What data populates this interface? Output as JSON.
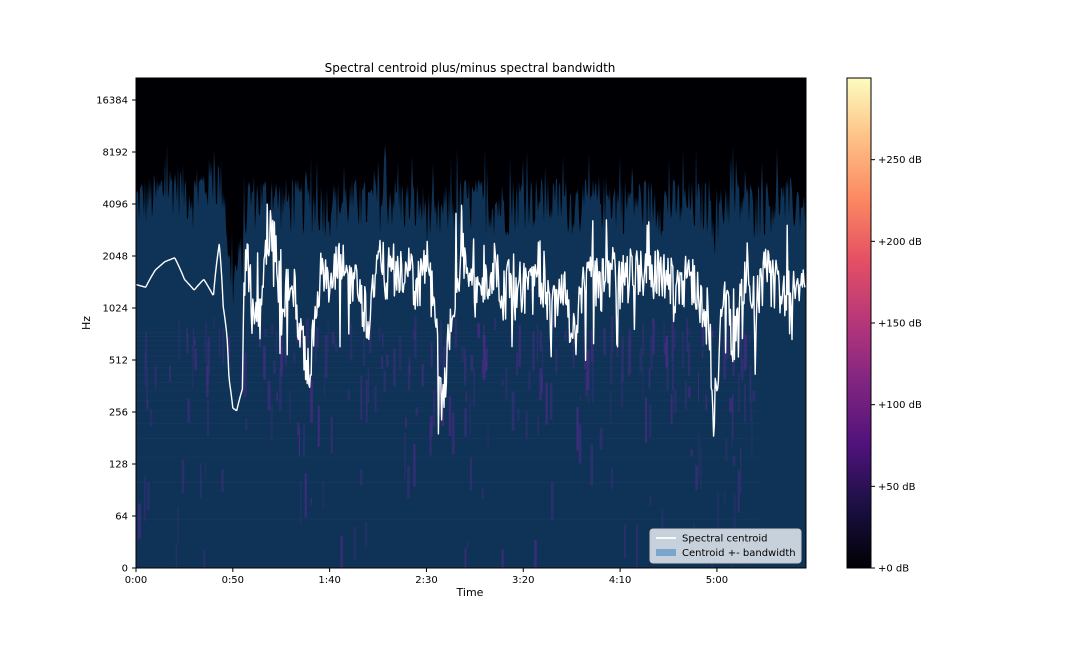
{
  "chart_data": {
    "type": "spectrogram",
    "title": "Spectral centroid plus/minus spectral bandwidth",
    "xlabel": "Time",
    "ylabel": "Hz",
    "x_range_seconds": [
      0,
      346
    ],
    "x_ticks": [
      {
        "t": 0,
        "label": "0:00"
      },
      {
        "t": 50,
        "label": "0:50"
      },
      {
        "t": 100,
        "label": "1:40"
      },
      {
        "t": 150,
        "label": "2:30"
      },
      {
        "t": 200,
        "label": "3:20"
      },
      {
        "t": 250,
        "label": "4:10"
      },
      {
        "t": 300,
        "label": "5:00"
      }
    ],
    "y_scale": "log (base 2, linear near zero)",
    "y_ticks": [
      {
        "hz": 0,
        "label": "0"
      },
      {
        "hz": 64,
        "label": "64"
      },
      {
        "hz": 128,
        "label": "128"
      },
      {
        "hz": 256,
        "label": "256"
      },
      {
        "hz": 512,
        "label": "512"
      },
      {
        "hz": 1024,
        "label": "1024"
      },
      {
        "hz": 2048,
        "label": "2048"
      },
      {
        "hz": 4096,
        "label": "4096"
      },
      {
        "hz": 8192,
        "label": "8192"
      },
      {
        "hz": 16384,
        "label": "16384"
      }
    ],
    "colorbar": {
      "colormap": "magma",
      "range_db": [
        0,
        300
      ],
      "ticks": [
        {
          "db": 0,
          "label": "+0 dB"
        },
        {
          "db": 50,
          "label": "+50 dB"
        },
        {
          "db": 100,
          "label": "+100 dB"
        },
        {
          "db": 150,
          "label": "+150 dB"
        },
        {
          "db": 200,
          "label": "+200 dB"
        },
        {
          "db": 250,
          "label": "+250 dB"
        }
      ]
    },
    "series": [
      {
        "name": "Spectral centroid",
        "color": "#ffffff",
        "points": [
          [
            0,
            1400
          ],
          [
            5,
            1350
          ],
          [
            10,
            1700
          ],
          [
            15,
            1900
          ],
          [
            20,
            2000
          ],
          [
            25,
            1500
          ],
          [
            30,
            1300
          ],
          [
            35,
            1500
          ],
          [
            40,
            1200
          ],
          [
            43,
            2400
          ],
          [
            45,
            1050
          ],
          [
            47,
            700
          ],
          [
            48,
            400
          ],
          [
            50,
            270
          ],
          [
            52,
            260
          ],
          [
            55,
            350
          ],
          [
            57,
            2200
          ],
          [
            60,
            950
          ],
          [
            65,
            1100
          ],
          [
            70,
            2900
          ],
          [
            75,
            950
          ],
          [
            80,
            1500
          ],
          [
            85,
            650
          ],
          [
            90,
            350
          ],
          [
            95,
            1600
          ],
          [
            100,
            1200
          ],
          [
            105,
            1800
          ],
          [
            110,
            1500
          ],
          [
            115,
            1300
          ],
          [
            120,
            800
          ],
          [
            125,
            1800
          ],
          [
            130,
            1600
          ],
          [
            135,
            1400
          ],
          [
            140,
            1700
          ],
          [
            145,
            1300
          ],
          [
            150,
            1800
          ],
          [
            155,
            700
          ],
          [
            158,
            200
          ],
          [
            160,
            400
          ],
          [
            165,
            1400
          ],
          [
            170,
            2100
          ],
          [
            175,
            1100
          ],
          [
            180,
            1300
          ],
          [
            185,
            1700
          ],
          [
            190,
            1200
          ],
          [
            195,
            1500
          ],
          [
            200,
            1300
          ],
          [
            205,
            1500
          ],
          [
            210,
            1400
          ],
          [
            215,
            900
          ],
          [
            220,
            1600
          ],
          [
            225,
            650
          ],
          [
            230,
            1200
          ],
          [
            235,
            1500
          ],
          [
            240,
            1300
          ],
          [
            245,
            1700
          ],
          [
            250,
            1400
          ],
          [
            255,
            1600
          ],
          [
            260,
            1700
          ],
          [
            265,
            1400
          ],
          [
            270,
            1600
          ],
          [
            275,
            1500
          ],
          [
            280,
            1300
          ],
          [
            285,
            1600
          ],
          [
            290,
            1200
          ],
          [
            295,
            1000
          ],
          [
            298,
            230
          ],
          [
            300,
            400
          ],
          [
            305,
            1200
          ],
          [
            308,
            550
          ],
          [
            312,
            1000
          ],
          [
            315,
            1400
          ],
          [
            320,
            1000
          ],
          [
            325,
            1600
          ],
          [
            330,
            1400
          ],
          [
            335,
            1200
          ],
          [
            340,
            1500
          ],
          [
            346,
            1100
          ]
        ]
      },
      {
        "name": "Centroid +- bandwidth",
        "color": "#1f77b4",
        "alpha": 0.5,
        "upper": [
          [
            0,
            3600
          ],
          [
            10,
            3800
          ],
          [
            20,
            4600
          ],
          [
            30,
            3800
          ],
          [
            40,
            5000
          ],
          [
            45,
            4500
          ],
          [
            48,
            1500
          ],
          [
            50,
            1200
          ],
          [
            55,
            1800
          ],
          [
            58,
            3800
          ],
          [
            70,
            3700
          ],
          [
            80,
            3500
          ],
          [
            90,
            3500
          ],
          [
            100,
            3400
          ],
          [
            110,
            3600
          ],
          [
            120,
            3400
          ],
          [
            130,
            3800
          ],
          [
            140,
            3500
          ],
          [
            150,
            3200
          ],
          [
            155,
            2600
          ],
          [
            160,
            3300
          ],
          [
            170,
            3600
          ],
          [
            180,
            3500
          ],
          [
            190,
            3400
          ],
          [
            200,
            3800
          ],
          [
            210,
            3600
          ],
          [
            220,
            3600
          ],
          [
            230,
            3400
          ],
          [
            240,
            3700
          ],
          [
            250,
            3600
          ],
          [
            260,
            3600
          ],
          [
            270,
            3500
          ],
          [
            280,
            3500
          ],
          [
            290,
            3400
          ],
          [
            296,
            3600
          ],
          [
            300,
            2400
          ],
          [
            305,
            3800
          ],
          [
            320,
            3300
          ],
          [
            330,
            3600
          ],
          [
            346,
            3500
          ]
        ],
        "lower": [
          [
            0,
            0
          ],
          [
            346,
            0
          ]
        ]
      }
    ],
    "legend": {
      "location": "lower right",
      "entries": [
        "Spectral centroid",
        "Centroid +- bandwidth"
      ]
    },
    "background_color": "#000004",
    "band_fill_color": "#0f3356"
  }
}
